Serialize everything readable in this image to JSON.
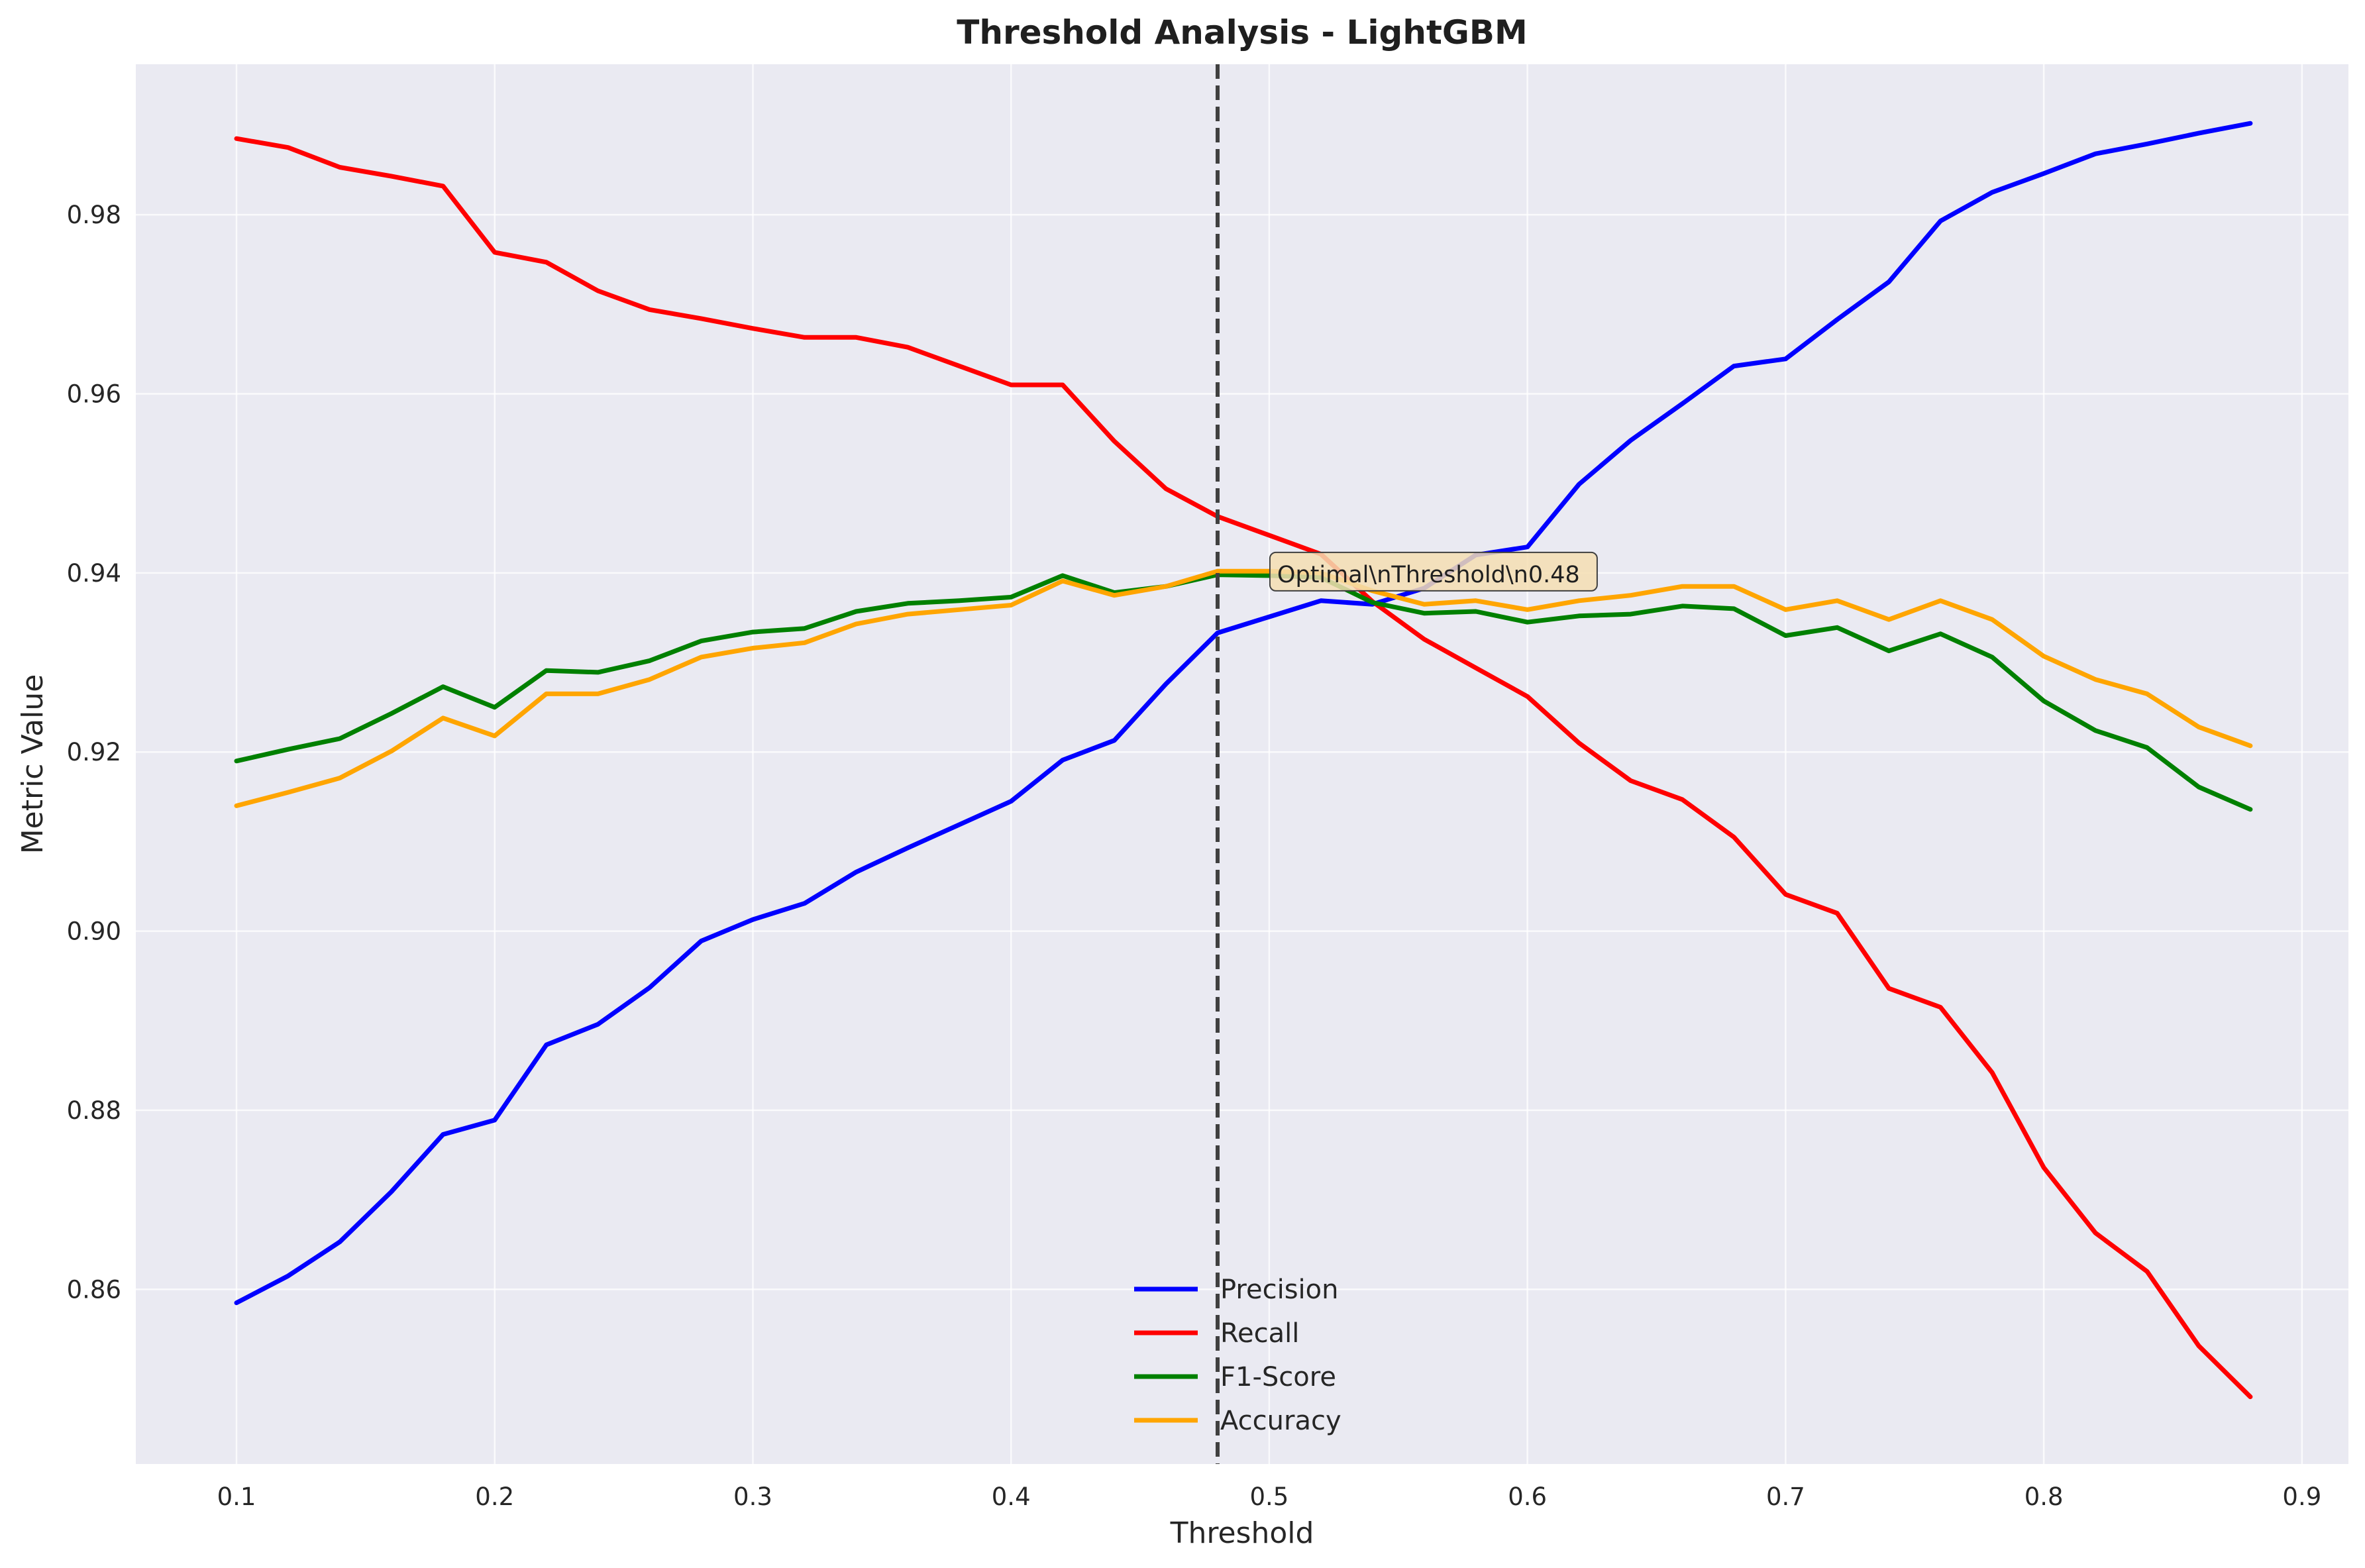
{
  "chart_data": {
    "type": "line",
    "title": "Threshold Analysis - LightGBM",
    "xlabel": "Threshold",
    "ylabel": "Metric Value",
    "xlim": [
      0.061,
      0.918
    ],
    "ylim": [
      0.8405,
      0.9968
    ],
    "xticks": [
      0.1,
      0.2,
      0.3,
      0.4,
      0.5,
      0.6,
      0.7,
      0.8,
      0.9
    ],
    "xtick_labels": [
      "0.1",
      "0.2",
      "0.3",
      "0.4",
      "0.5",
      "0.6",
      "0.7",
      "0.8",
      "0.9"
    ],
    "yticks": [
      0.86,
      0.88,
      0.9,
      0.92,
      0.94,
      0.96,
      0.98
    ],
    "ytick_labels": [
      "0.86",
      "0.88",
      "0.90",
      "0.92",
      "0.94",
      "0.96",
      "0.98"
    ],
    "grid": true,
    "legend_position": "bottom-center",
    "x": [
      0.1,
      0.12,
      0.14,
      0.16,
      0.18,
      0.2,
      0.22,
      0.24,
      0.26,
      0.28,
      0.3,
      0.32,
      0.34,
      0.36,
      0.38,
      0.4,
      0.42,
      0.44,
      0.46,
      0.48,
      0.5,
      0.52,
      0.54,
      0.56,
      0.58,
      0.6,
      0.62,
      0.64,
      0.66,
      0.68,
      0.7,
      0.72,
      0.74,
      0.76,
      0.78,
      0.8,
      0.82,
      0.84,
      0.86,
      0.88
    ],
    "series": [
      {
        "name": "Precision",
        "color": "#0000ff",
        "values": [
          0.8585,
          0.8615,
          0.8653,
          0.8709,
          0.8773,
          0.8789,
          0.8873,
          0.8896,
          0.8937,
          0.8989,
          0.9013,
          0.9031,
          0.9066,
          0.9093,
          0.9119,
          0.9145,
          0.9191,
          0.9213,
          0.9276,
          0.9333,
          0.9351,
          0.9369,
          0.9365,
          0.9383,
          0.942,
          0.9429,
          0.9499,
          0.9548,
          0.9589,
          0.9631,
          0.9639,
          0.9683,
          0.9725,
          0.9793,
          0.9825,
          0.9846,
          0.9868,
          0.9879,
          0.9891,
          0.9902
        ]
      },
      {
        "name": "Recall",
        "color": "#ff0000",
        "values": [
          0.9885,
          0.9875,
          0.9853,
          0.9843,
          0.9832,
          0.9758,
          0.9747,
          0.9715,
          0.9694,
          0.9684,
          0.9673,
          0.9663,
          0.9663,
          0.9652,
          0.9631,
          0.961,
          0.961,
          0.9547,
          0.9494,
          0.9463,
          0.9442,
          0.9421,
          0.9368,
          0.9326,
          0.9294,
          0.9262,
          0.921,
          0.9168,
          0.9147,
          0.9105,
          0.9041,
          0.902,
          0.8936,
          0.8915,
          0.8842,
          0.8736,
          0.8663,
          0.862,
          0.8537,
          0.848
        ]
      },
      {
        "name": "F1-Score",
        "color": "#008000",
        "values": [
          0.919,
          0.9203,
          0.9215,
          0.9243,
          0.9273,
          0.925,
          0.9291,
          0.9289,
          0.9302,
          0.9324,
          0.9334,
          0.9338,
          0.9357,
          0.9366,
          0.9369,
          0.9373,
          0.9397,
          0.9378,
          0.9385,
          0.9398,
          0.9397,
          0.9395,
          0.9367,
          0.9355,
          0.9357,
          0.9345,
          0.9352,
          0.9354,
          0.9363,
          0.936,
          0.933,
          0.9339,
          0.9313,
          0.9332,
          0.9306,
          0.9257,
          0.9224,
          0.9205,
          0.9161,
          0.9136
        ]
      },
      {
        "name": "Accuracy",
        "color": "#ffa500",
        "values": [
          0.914,
          0.9155,
          0.9171,
          0.9201,
          0.9238,
          0.9218,
          0.9265,
          0.9265,
          0.9281,
          0.9306,
          0.9316,
          0.9322,
          0.9343,
          0.9354,
          0.9359,
          0.9364,
          0.9391,
          0.9375,
          0.9385,
          0.9402,
          0.9402,
          0.94,
          0.938,
          0.9365,
          0.9369,
          0.9359,
          0.9369,
          0.9375,
          0.9385,
          0.9385,
          0.9359,
          0.9369,
          0.9348,
          0.9369,
          0.9348,
          0.9307,
          0.9281,
          0.9265,
          0.9228,
          0.9207
        ]
      }
    ],
    "vline": {
      "x": 0.48,
      "style": "dashed",
      "color": "#404040"
    },
    "annotation": {
      "text": "Optimal\\nThreshold\\n0.48",
      "x": 0.5,
      "y": 0.94
    }
  }
}
